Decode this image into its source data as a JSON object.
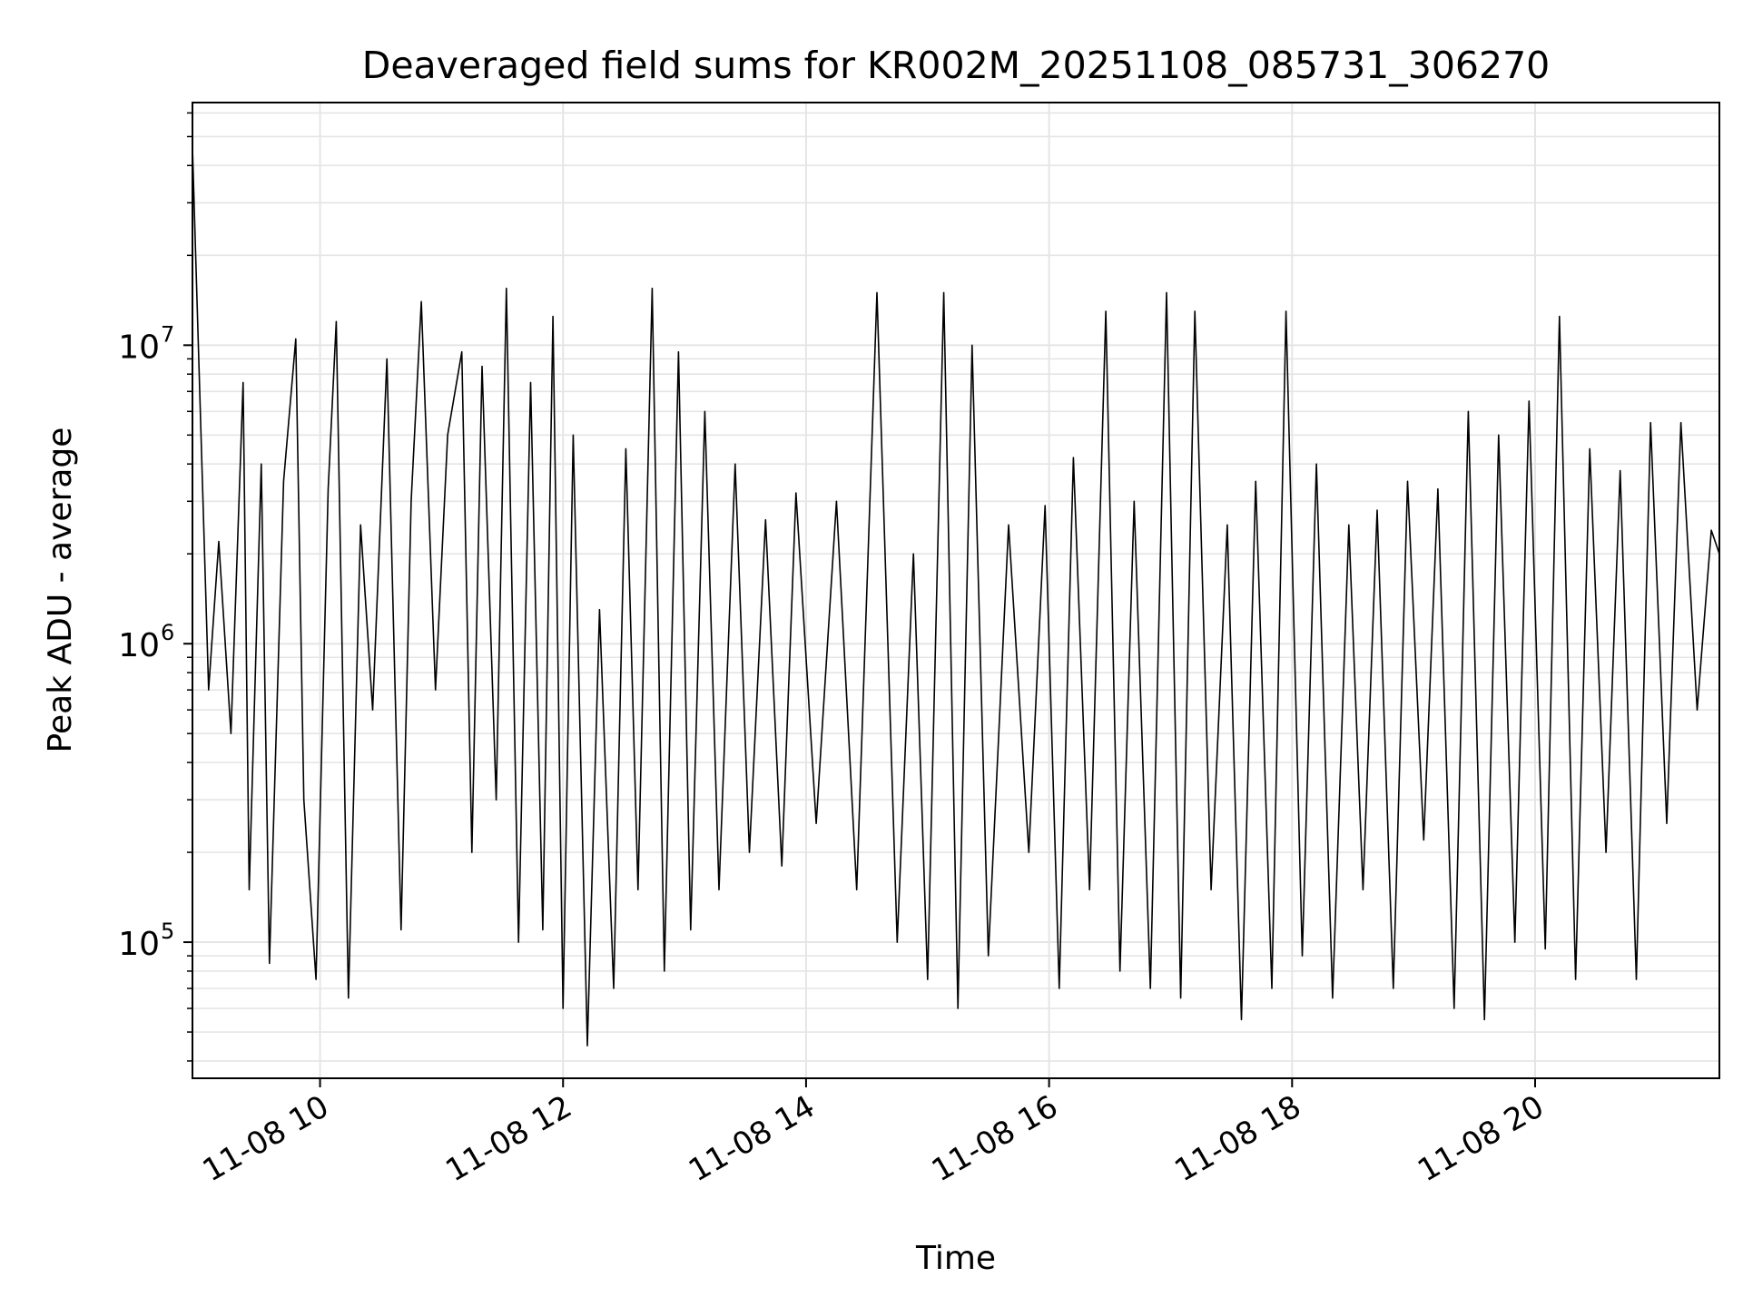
{
  "chart_data": {
    "type": "line",
    "title": "Deaveraged field sums for KR002M_20251108_085731_306270",
    "xlabel": "Time",
    "ylabel": "Peak ADU - average",
    "y_scale": "log",
    "ylim": [
      35000,
      65000000
    ],
    "xlim": [
      "2025-11-08 08:57",
      "2025-11-08 21:31"
    ],
    "grid": true,
    "legend": "none",
    "line_color": "#000000",
    "grid_color": "#e5e5e5",
    "x_ticks": [
      {
        "value": "2025-11-08 10:00",
        "label": "11-08 10"
      },
      {
        "value": "2025-11-08 12:00",
        "label": "11-08 12"
      },
      {
        "value": "2025-11-08 14:00",
        "label": "11-08 14"
      },
      {
        "value": "2025-11-08 16:00",
        "label": "11-08 16"
      },
      {
        "value": "2025-11-08 18:00",
        "label": "11-08 18"
      },
      {
        "value": "2025-11-08 20:00",
        "label": "11-08 20"
      }
    ],
    "y_ticks": [
      {
        "value": 100000,
        "base": "10",
        "exp": "5"
      },
      {
        "value": 1000000,
        "base": "10",
        "exp": "6"
      },
      {
        "value": 10000000,
        "base": "10",
        "exp": "7"
      }
    ],
    "series": [
      {
        "x": [
          "2025-11-08 08:57",
          "2025-11-08 09:05",
          "2025-11-08 09:10",
          "2025-11-08 09:16",
          "2025-11-08 09:22",
          "2025-11-08 09:25",
          "2025-11-08 09:31",
          "2025-11-08 09:35",
          "2025-11-08 09:42",
          "2025-11-08 09:48",
          "2025-11-08 09:52",
          "2025-11-08 09:58",
          "2025-11-08 10:04",
          "2025-11-08 10:08",
          "2025-11-08 10:14",
          "2025-11-08 10:20",
          "2025-11-08 10:26",
          "2025-11-08 10:33",
          "2025-11-08 10:40",
          "2025-11-08 10:45",
          "2025-11-08 10:50",
          "2025-11-08 10:57",
          "2025-11-08 11:03",
          "2025-11-08 11:10",
          "2025-11-08 11:15",
          "2025-11-08 11:20",
          "2025-11-08 11:27",
          "2025-11-08 11:32",
          "2025-11-08 11:38",
          "2025-11-08 11:44",
          "2025-11-08 11:50",
          "2025-11-08 11:55",
          "2025-11-08 12:00",
          "2025-11-08 12:05",
          "2025-11-08 12:12",
          "2025-11-08 12:18",
          "2025-11-08 12:25",
          "2025-11-08 12:31",
          "2025-11-08 12:37",
          "2025-11-08 12:44",
          "2025-11-08 12:50",
          "2025-11-08 12:57",
          "2025-11-08 13:03",
          "2025-11-08 13:10",
          "2025-11-08 13:17",
          "2025-11-08 13:25",
          "2025-11-08 13:32",
          "2025-11-08 13:40",
          "2025-11-08 13:48",
          "2025-11-08 13:55",
          "2025-11-08 14:05",
          "2025-11-08 14:15",
          "2025-11-08 14:25",
          "2025-11-08 14:35",
          "2025-11-08 14:45",
          "2025-11-08 14:53",
          "2025-11-08 15:00",
          "2025-11-08 15:08",
          "2025-11-08 15:15",
          "2025-11-08 15:22",
          "2025-11-08 15:30",
          "2025-11-08 15:40",
          "2025-11-08 15:50",
          "2025-11-08 15:58",
          "2025-11-08 16:05",
          "2025-11-08 16:12",
          "2025-11-08 16:20",
          "2025-11-08 16:28",
          "2025-11-08 16:35",
          "2025-11-08 16:42",
          "2025-11-08 16:50",
          "2025-11-08 16:58",
          "2025-11-08 17:05",
          "2025-11-08 17:12",
          "2025-11-08 17:20",
          "2025-11-08 17:28",
          "2025-11-08 17:35",
          "2025-11-08 17:42",
          "2025-11-08 17:50",
          "2025-11-08 17:57",
          "2025-11-08 18:05",
          "2025-11-08 18:12",
          "2025-11-08 18:20",
          "2025-11-08 18:28",
          "2025-11-08 18:35",
          "2025-11-08 18:42",
          "2025-11-08 18:50",
          "2025-11-08 18:57",
          "2025-11-08 19:05",
          "2025-11-08 19:12",
          "2025-11-08 19:20",
          "2025-11-08 19:27",
          "2025-11-08 19:35",
          "2025-11-08 19:42",
          "2025-11-08 19:50",
          "2025-11-08 19:57",
          "2025-11-08 20:05",
          "2025-11-08 20:12",
          "2025-11-08 20:20",
          "2025-11-08 20:27",
          "2025-11-08 20:35",
          "2025-11-08 20:42",
          "2025-11-08 20:50",
          "2025-11-08 20:57",
          "2025-11-08 21:05",
          "2025-11-08 21:12",
          "2025-11-08 21:20",
          "2025-11-08 21:27",
          "2025-11-08 21:31"
        ],
        "y": [
          46000000,
          700000,
          2200000,
          500000,
          7500000,
          150000,
          4000000,
          85000,
          3500000,
          10500000,
          300000,
          75000,
          3300000,
          12000000,
          65000,
          2500000,
          600000,
          9000000,
          110000,
          3000000,
          14000000,
          700000,
          5000000,
          9500000,
          200000,
          8500000,
          300000,
          15500000,
          100000,
          7500000,
          110000,
          12500000,
          60000,
          5000000,
          45000,
          1300000,
          70000,
          4500000,
          150000,
          15500000,
          80000,
          9500000,
          110000,
          6000000,
          150000,
          4000000,
          200000,
          2600000,
          180000,
          3200000,
          250000,
          3000000,
          150000,
          15000000,
          100000,
          2000000,
          75000,
          15000000,
          60000,
          10000000,
          90000,
          2500000,
          200000,
          2900000,
          70000,
          4200000,
          150000,
          13000000,
          80000,
          3000000,
          70000,
          15000000,
          65000,
          13000000,
          150000,
          2500000,
          55000,
          3500000,
          70000,
          13000000,
          90000,
          4000000,
          65000,
          2500000,
          150000,
          2800000,
          70000,
          3500000,
          220000,
          3300000,
          60000,
          6000000,
          55000,
          5000000,
          100000,
          6500000,
          95000,
          12500000,
          75000,
          4500000,
          200000,
          3800000,
          75000,
          5500000,
          250000,
          5500000,
          600000,
          2400000,
          2000000
        ]
      }
    ]
  }
}
